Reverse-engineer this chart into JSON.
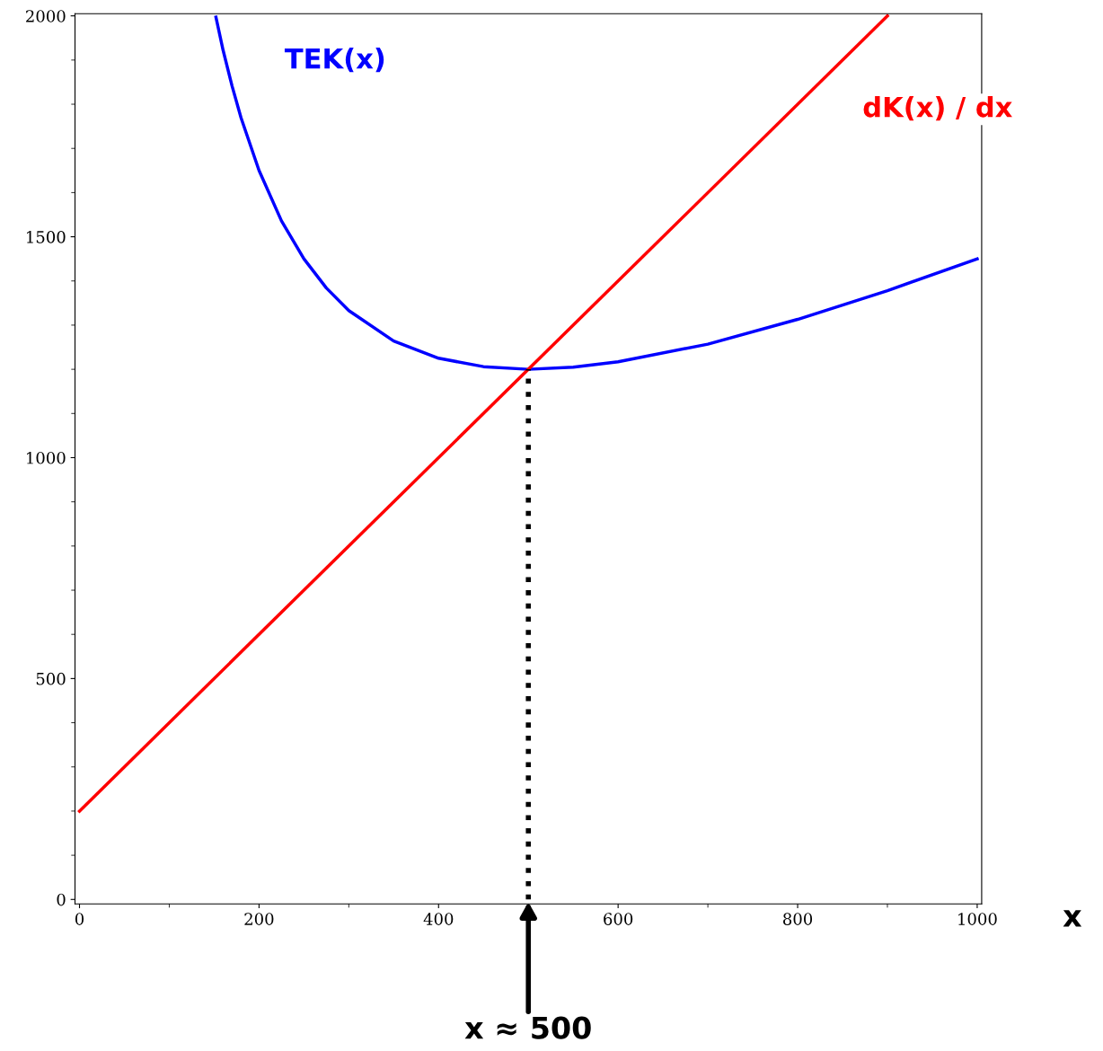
{
  "chart_data": {
    "type": "line",
    "xlabel": "x",
    "xlim": [
      -5,
      1005
    ],
    "ylim": [
      -10,
      2005
    ],
    "xticks": [
      0,
      200,
      400,
      600,
      800,
      1000
    ],
    "yticks": [
      0,
      500,
      1000,
      1500,
      2000
    ],
    "grid": false,
    "marker": "none",
    "series": [
      {
        "name": "TEK(x)",
        "color": "#0000ff",
        "x": [
          152,
          160,
          170,
          180,
          200,
          225,
          250,
          275,
          300,
          350,
          400,
          450,
          500,
          550,
          600,
          700,
          800,
          900,
          1000
        ],
        "values": [
          1997,
          1922,
          1841,
          1769,
          1650,
          1536,
          1450,
          1384,
          1333,
          1264,
          1225,
          1206,
          1200,
          1205,
          1217,
          1257,
          1313,
          1378,
          1450
        ]
      },
      {
        "name": "dK(x) / dx",
        "color": "#ff0000",
        "x": [
          0,
          900
        ],
        "values": [
          200,
          2000
        ]
      },
      {
        "color": "#000000",
        "line_style": "dotted",
        "x": [
          500,
          500
        ],
        "values": [
          0,
          1200
        ]
      }
    ],
    "annotations": [
      {
        "text": "x ≈ 500",
        "x": 500,
        "y": 0
      }
    ]
  }
}
